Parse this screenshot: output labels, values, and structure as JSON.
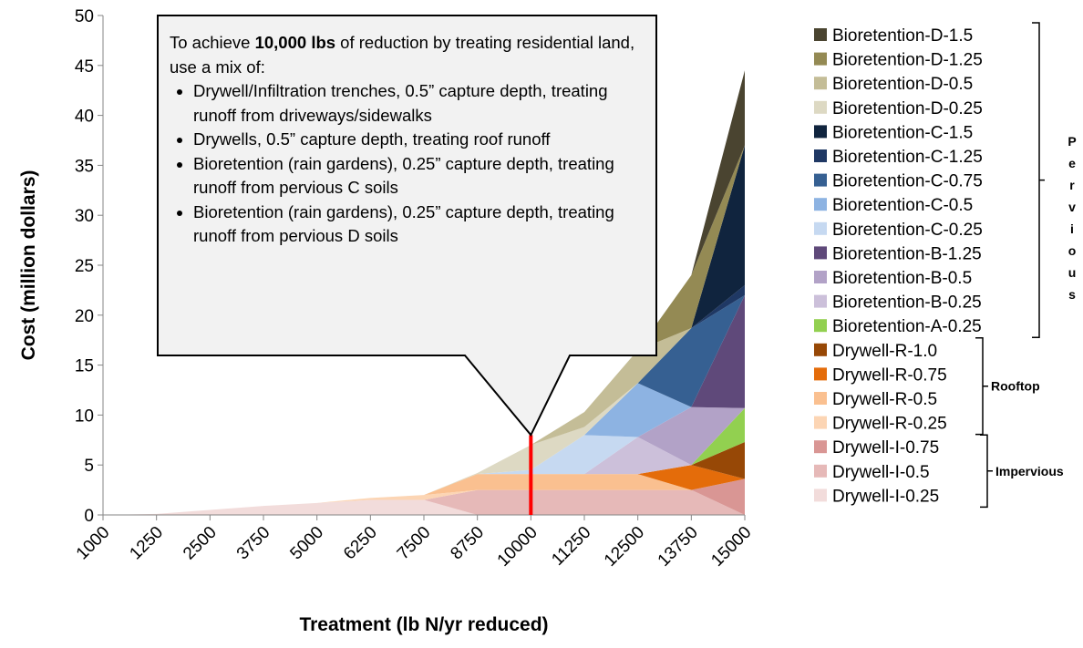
{
  "chart_data": {
    "type": "stacked_area",
    "x_label": "Treatment (lb N/yr reduced)",
    "y_label": "Cost (million dollars)",
    "categories": [
      "1000",
      "1250",
      "2500",
      "3750",
      "5000",
      "6250",
      "7500",
      "8750",
      "10000",
      "11250",
      "12500",
      "13750",
      "15000"
    ],
    "ylim": [
      0,
      50
    ],
    "yticks": [
      0,
      5,
      10,
      15,
      20,
      25,
      30,
      35,
      40,
      45,
      50
    ],
    "series": [
      {
        "name": "Drywell-I-0.25",
        "color": "#f2dcdb",
        "values": [
          0,
          0.1,
          0.5,
          0.9,
          1.2,
          1.5,
          1.5,
          0,
          0,
          0,
          0,
          0,
          0
        ]
      },
      {
        "name": "Drywell-I-0.5",
        "color": "#e6b9b8",
        "values": [
          0,
          0,
          0,
          0,
          0,
          0,
          0,
          2.5,
          2.5,
          2.5,
          2.5,
          2.5,
          0
        ]
      },
      {
        "name": "Drywell-I-0.75",
        "color": "#d99694",
        "values": [
          0,
          0,
          0,
          0,
          0,
          0,
          0,
          0,
          0,
          0,
          0,
          0,
          3.6
        ]
      },
      {
        "name": "Drywell-R-0.25",
        "color": "#fcd5b4",
        "values": [
          0,
          0,
          0,
          0,
          0,
          0.2,
          0.5,
          0,
          0,
          0,
          0,
          0,
          0
        ]
      },
      {
        "name": "Drywell-R-0.5",
        "color": "#fac090",
        "values": [
          0,
          0,
          0,
          0,
          0,
          0,
          0,
          1.6,
          1.6,
          1.6,
          1.6,
          0,
          0
        ]
      },
      {
        "name": "Drywell-R-0.75",
        "color": "#e46c0a",
        "values": [
          0,
          0,
          0,
          0,
          0,
          0,
          0,
          0,
          0,
          0,
          0,
          2.5,
          0
        ]
      },
      {
        "name": "Drywell-R-1.0",
        "color": "#974806",
        "values": [
          0,
          0,
          0,
          0,
          0,
          0,
          0,
          0,
          0,
          0,
          0,
          0,
          3.7
        ]
      },
      {
        "name": "Bioretention-A-0.25",
        "color": "#92d050",
        "values": [
          0,
          0,
          0,
          0,
          0,
          0,
          0,
          0,
          0,
          0,
          0,
          0,
          3.4
        ]
      },
      {
        "name": "Bioretention-B-0.25",
        "color": "#ccc0da",
        "values": [
          0,
          0,
          0,
          0,
          0,
          0,
          0,
          0,
          0,
          0,
          3.7,
          0,
          0
        ]
      },
      {
        "name": "Bioretention-B-0.5",
        "color": "#b2a2c7",
        "values": [
          0,
          0,
          0,
          0,
          0,
          0,
          0,
          0,
          0,
          0,
          0,
          5.8,
          0
        ]
      },
      {
        "name": "Bioretention-B-1.25",
        "color": "#5f497a",
        "values": [
          0,
          0,
          0,
          0,
          0,
          0,
          0,
          0,
          0,
          0,
          0,
          0,
          11.3
        ]
      },
      {
        "name": "Bioretention-C-0.25",
        "color": "#c6d9f1",
        "values": [
          0,
          0,
          0,
          0,
          0,
          0,
          0,
          0,
          0.4,
          3.9,
          0,
          0,
          0
        ]
      },
      {
        "name": "Bioretention-C-0.5",
        "color": "#8db3e2",
        "values": [
          0,
          0,
          0,
          0,
          0,
          0,
          0,
          0,
          0,
          0,
          5.4,
          0,
          0
        ]
      },
      {
        "name": "Bioretention-C-0.75",
        "color": "#366092",
        "values": [
          0,
          0,
          0,
          0,
          0,
          0,
          0,
          0,
          0,
          0,
          0,
          7.9,
          0
        ]
      },
      {
        "name": "Bioretention-C-1.25",
        "color": "#1f3864",
        "values": [
          0,
          0,
          0,
          0,
          0,
          0,
          0,
          0,
          0,
          0,
          0,
          0,
          1
        ]
      },
      {
        "name": "Bioretention-C-1.5",
        "color": "#10243e",
        "values": [
          0,
          0,
          0,
          0,
          0,
          0,
          0,
          0,
          0,
          0,
          0,
          0,
          14
        ]
      },
      {
        "name": "Bioretention-D-0.25",
        "color": "#ddd9c3",
        "values": [
          0,
          0,
          0,
          0,
          0,
          0,
          0,
          0.1,
          2.5,
          0.8,
          0,
          0,
          0
        ]
      },
      {
        "name": "Bioretention-D-0.5",
        "color": "#c4bd97",
        "values": [
          0,
          0,
          0,
          0,
          0,
          0,
          0,
          0,
          0,
          1.5,
          3.3,
          0,
          0
        ]
      },
      {
        "name": "Bioretention-D-1.25",
        "color": "#948a54",
        "values": [
          0,
          0,
          0,
          0,
          0,
          0,
          0,
          0,
          0,
          0,
          0,
          5.3,
          0
        ]
      },
      {
        "name": "Bioretention-D-1.5",
        "color": "#4a4430",
        "values": [
          0,
          0,
          0,
          0,
          0,
          0,
          0,
          0,
          0,
          0,
          0,
          0,
          7.5
        ]
      }
    ],
    "legend_groups": [
      "Pervious",
      "Rooftop",
      "Impervious"
    ],
    "marker": {
      "category": "10000",
      "value": 8,
      "color": "#ff0000"
    },
    "annotation": {
      "before": "To achieve ",
      "bold": "10,000 lbs",
      "after": " of reduction by treating residential land, use a mix of:",
      "bullets": [
        "Drywell/Infiltration trenches, 0.5” capture depth, treating runoff from driveways/sidewalks",
        "Drywells, 0.5” capture depth, treating roof runoff",
        "Bioretention (rain gardens), 0.25” capture depth, treating runoff from pervious C soils",
        "Bioretention (rain gardens), 0.25” capture depth, treating runoff from pervious D soils"
      ]
    }
  }
}
